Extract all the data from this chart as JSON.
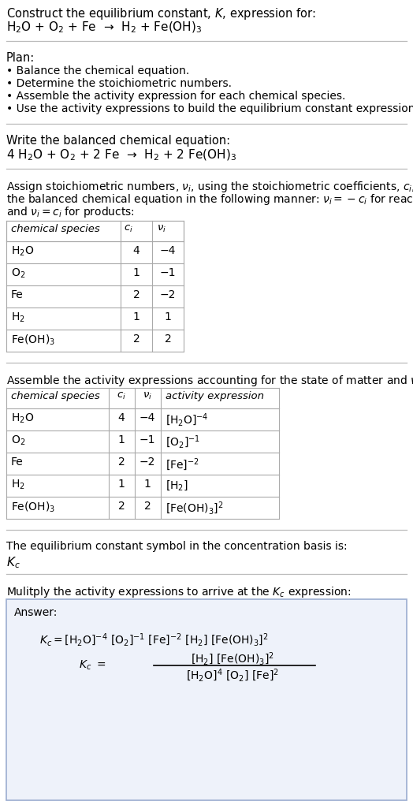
{
  "title_line1": "Construct the equilibrium constant, $K$, expression for:",
  "title_line2": "H$_2$O + O$_2$ + Fe  →  H$_2$ + Fe(OH)$_3$",
  "plan_header": "Plan:",
  "plan_bullets": [
    "• Balance the chemical equation.",
    "• Determine the stoichiometric numbers.",
    "• Assemble the activity expression for each chemical species.",
    "• Use the activity expressions to build the equilibrium constant expression."
  ],
  "balanced_header": "Write the balanced chemical equation:",
  "balanced_eq": "4 H$_2$O + O$_2$ + 2 Fe  →  H$_2$ + 2 Fe(OH)$_3$",
  "stoich_intro_1": "Assign stoichiometric numbers, $\\nu_i$, using the stoichiometric coefficients, $c_i$, from",
  "stoich_intro_2": "the balanced chemical equation in the following manner: $\\nu_i = -c_i$ for reactants",
  "stoich_intro_3": "and $\\nu_i = c_i$ for products:",
  "table1_headers": [
    "chemical species",
    "$c_i$",
    "$\\nu_i$"
  ],
  "table1_data": [
    [
      "H$_2$O",
      "4",
      "−4"
    ],
    [
      "O$_2$",
      "1",
      "−1"
    ],
    [
      "Fe",
      "2",
      "−2"
    ],
    [
      "H$_2$",
      "1",
      "1"
    ],
    [
      "Fe(OH)$_3$",
      "2",
      "2"
    ]
  ],
  "activity_intro": "Assemble the activity expressions accounting for the state of matter and $\\nu_i$:",
  "table2_headers": [
    "chemical species",
    "$c_i$",
    "$\\nu_i$",
    "activity expression"
  ],
  "table2_data": [
    [
      "H$_2$O",
      "4",
      "−4",
      "[H$_2$O]$^{-4}$"
    ],
    [
      "O$_2$",
      "1",
      "−1",
      "[O$_2$]$^{-1}$"
    ],
    [
      "Fe",
      "2",
      "−2",
      "[Fe]$^{-2}$"
    ],
    [
      "H$_2$",
      "1",
      "1",
      "[H$_2$]"
    ],
    [
      "Fe(OH)$_3$",
      "2",
      "2",
      "[Fe(OH)$_3$]$^2$"
    ]
  ],
  "kc_intro": "The equilibrium constant symbol in the concentration basis is:",
  "kc_symbol": "$K_c$",
  "multiply_intro": "Mulitply the activity expressions to arrive at the $K_c$ expression:",
  "answer_label": "Answer:",
  "sep_color": "#bbbbbb",
  "table_border_color": "#aaaaaa",
  "answer_bg": "#eef2fa",
  "answer_border": "#9badd0"
}
